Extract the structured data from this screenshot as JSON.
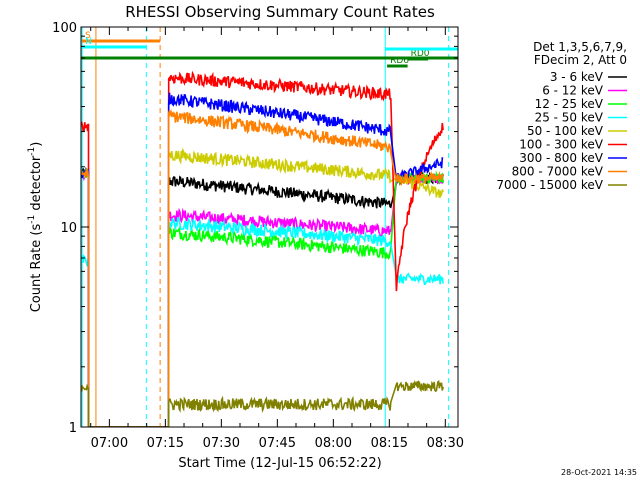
{
  "chart_data": {
    "type": "line",
    "title": "RHESSI Observing Summary Count Rates",
    "xlabel": "Start Time (12-Jul-15 06:52:22)",
    "ylabel_main": "Count Rate (s",
    "ylabel_sup": "-1",
    "ylabel_rest": " detector",
    "ylabel_end": ")",
    "y_scale": "log",
    "ylim": [
      1,
      100
    ],
    "x_range_min": [
      0,
      101
    ],
    "x_ticks": [
      {
        "min": 7.6,
        "label": "07:00"
      },
      {
        "min": 22.6,
        "label": "07:15"
      },
      {
        "min": 37.6,
        "label": "07:30"
      },
      {
        "min": 52.6,
        "label": "07:45"
      },
      {
        "min": 67.6,
        "label": "08:00"
      },
      {
        "min": 82.6,
        "label": "08:15"
      },
      {
        "min": 97.6,
        "label": "08:30"
      }
    ],
    "y_ticks": [
      {
        "value": 1,
        "label": "1"
      },
      {
        "value": 10,
        "label": "10"
      },
      {
        "value": 100,
        "label": "100"
      }
    ],
    "legend_header": [
      "Det 1,3,5,6,7,9,",
      "FDecim 2, Att 0"
    ],
    "series": [
      {
        "name": "3 - 6 keV",
        "color": "#000000",
        "pre": [
          0,
          2,
          18.5
        ],
        "main": [
          23.5,
          83,
          17,
          13
        ],
        "post": [
          84.5,
          97,
          17.5,
          17.5
        ]
      },
      {
        "name": "6 - 12 keV",
        "color": "#ff00ff",
        "pre": [
          0,
          2,
          18.5
        ],
        "main": [
          23.5,
          83,
          11.5,
          9.5
        ],
        "post": [
          84.5,
          97,
          17.5,
          17.5
        ]
      },
      {
        "name": "12 - 25 keV",
        "color": "#00ff00",
        "pre": [
          0,
          2,
          18.5
        ],
        "main": [
          23.5,
          83,
          9.4,
          7.4
        ],
        "post": [
          84.5,
          97,
          17.5,
          17.5
        ]
      },
      {
        "name": "25 - 50 keV",
        "color": "#00ffff",
        "pre": [
          0,
          2,
          6.8
        ],
        "main": [
          23.5,
          83,
          10.5,
          8.5
        ],
        "post": [
          84.5,
          97,
          5.5,
          5.5
        ]
      },
      {
        "name": "50 - 100 keV",
        "color": "#cccc00",
        "pre": [
          0,
          2,
          18.5
        ],
        "main": [
          23.5,
          83,
          23,
          18
        ],
        "post": [
          84.5,
          97,
          17.5,
          14.5
        ]
      },
      {
        "name": "100 - 300 keV",
        "color": "#ff0000",
        "pre": [
          0,
          2,
          32
        ],
        "main": [
          23.5,
          83,
          56,
          46
        ],
        "post": [
          84.5,
          97,
          4.8,
          32
        ]
      },
      {
        "name": "300 - 800 keV",
        "color": "#0000ff",
        "pre": [
          0,
          2,
          18.5
        ],
        "main": [
          23.5,
          83,
          44,
          30
        ],
        "post": [
          84.5,
          97,
          17.5,
          21
        ]
      },
      {
        "name": "800 - 7000 keV",
        "color": "#ff8000",
        "pre": [
          0,
          2,
          18.5
        ],
        "main": [
          23.5,
          83,
          36,
          25
        ],
        "post": [
          84.5,
          97,
          17.5,
          17.5
        ]
      },
      {
        "name": "7000 - 15000 keV",
        "color": "#808000",
        "pre": [
          0,
          2,
          1.6
        ],
        "main": [
          23.5,
          83,
          1.3,
          1.3
        ],
        "post": [
          84.5,
          97,
          1.6,
          1.6
        ]
      }
    ],
    "vlines": [
      {
        "min": 0.3,
        "color": "#00ffff",
        "dash": false
      },
      {
        "min": 4.0,
        "color": "#ff8000",
        "dash": false
      },
      {
        "min": 17.5,
        "color": "#00ffff",
        "dash": true
      },
      {
        "min": 21.2,
        "color": "#ff8000",
        "dash": true
      },
      {
        "min": 81.5,
        "color": "#00ffff",
        "dash": false
      },
      {
        "min": 98.5,
        "color": "#00ffff",
        "dash": true
      }
    ],
    "flag_bars": [
      {
        "label": "S",
        "color": "#ff8000",
        "start": 0.3,
        "end": 21.2,
        "y": 41
      },
      {
        "label": "N",
        "color": "#00ffff",
        "start": 0.3,
        "end": 17.5,
        "y": 47
      },
      {
        "label": "",
        "color": "#008000",
        "start": 0,
        "end": 101,
        "y": 58
      },
      {
        "label": "RD6",
        "color": "#008000",
        "start": 82,
        "end": 87.5,
        "y": 66
      },
      {
        "label": "RD0",
        "color": "#008000",
        "start": 87.5,
        "end": 93,
        "y": 59
      },
      {
        "label": "",
        "color": "#00ffff",
        "start": 81.5,
        "end": 101,
        "y": 49
      }
    ],
    "timestamp": "28-Oct-2021 14:35"
  }
}
